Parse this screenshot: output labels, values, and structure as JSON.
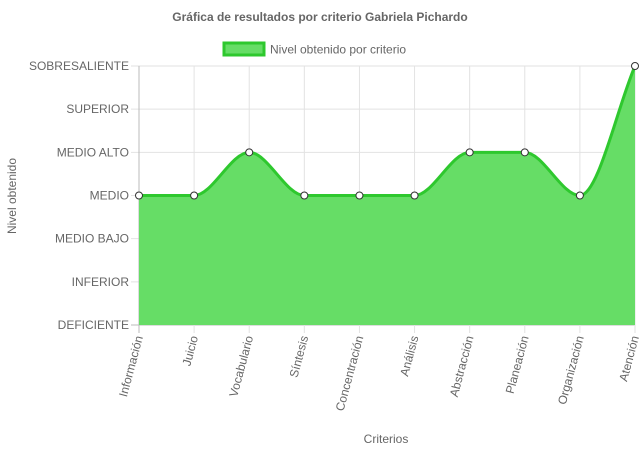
{
  "chart_data": {
    "type": "area",
    "title": "Gráfica de resultados por criterio Gabriela Pichardo",
    "xlabel": "Criterios",
    "ylabel": "Nivel obtenido",
    "levels": [
      "DEFICIENTE",
      "INFERIOR",
      "MEDIO BAJO",
      "MEDIO",
      "MEDIO ALTO",
      "SUPERIOR",
      "SOBRESALIENTE"
    ],
    "ylim": [
      0,
      6
    ],
    "categories": [
      "Información",
      "Juicio",
      "Vocabulario",
      "Síntesis",
      "Concentración",
      "Análisis",
      "Abstracción",
      "Planeación",
      "Organización",
      "Atención"
    ],
    "series": [
      {
        "name": "Nivel obtenido por criterio",
        "values": [
          3,
          3,
          4,
          3,
          3,
          3,
          4,
          4,
          3,
          6
        ]
      }
    ],
    "grid": true,
    "legend": "top",
    "colors": {
      "fill": "#66dd66",
      "line": "#2ec82e",
      "grid": "#e6e6e6",
      "text": "#666666"
    }
  }
}
